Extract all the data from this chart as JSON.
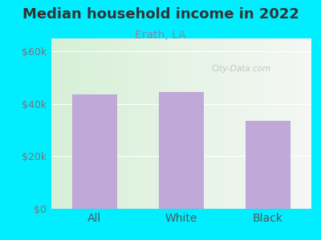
{
  "title": "Median household income in 2022",
  "subtitle": "Erath, LA",
  "categories": [
    "All",
    "White",
    "Black"
  ],
  "values": [
    43500,
    44500,
    33500
  ],
  "bar_color": "#c0a8d8",
  "background_outer": "#00eeff",
  "title_color": "#333333",
  "subtitle_color": "#8888aa",
  "tick_label_color": "#777777",
  "xlabel_color": "#555555",
  "ylim": [
    0,
    65000
  ],
  "yticks": [
    0,
    20000,
    40000,
    60000
  ],
  "ytick_labels": [
    "$0",
    "$20k",
    "$40k",
    "$60k"
  ],
  "watermark": "City-Data.com",
  "title_fontsize": 13,
  "subtitle_fontsize": 10,
  "tick_fontsize": 9,
  "xlabel_fontsize": 10,
  "plot_bg_left": "#d8eed8",
  "plot_bg_right": "#f5f8f5"
}
